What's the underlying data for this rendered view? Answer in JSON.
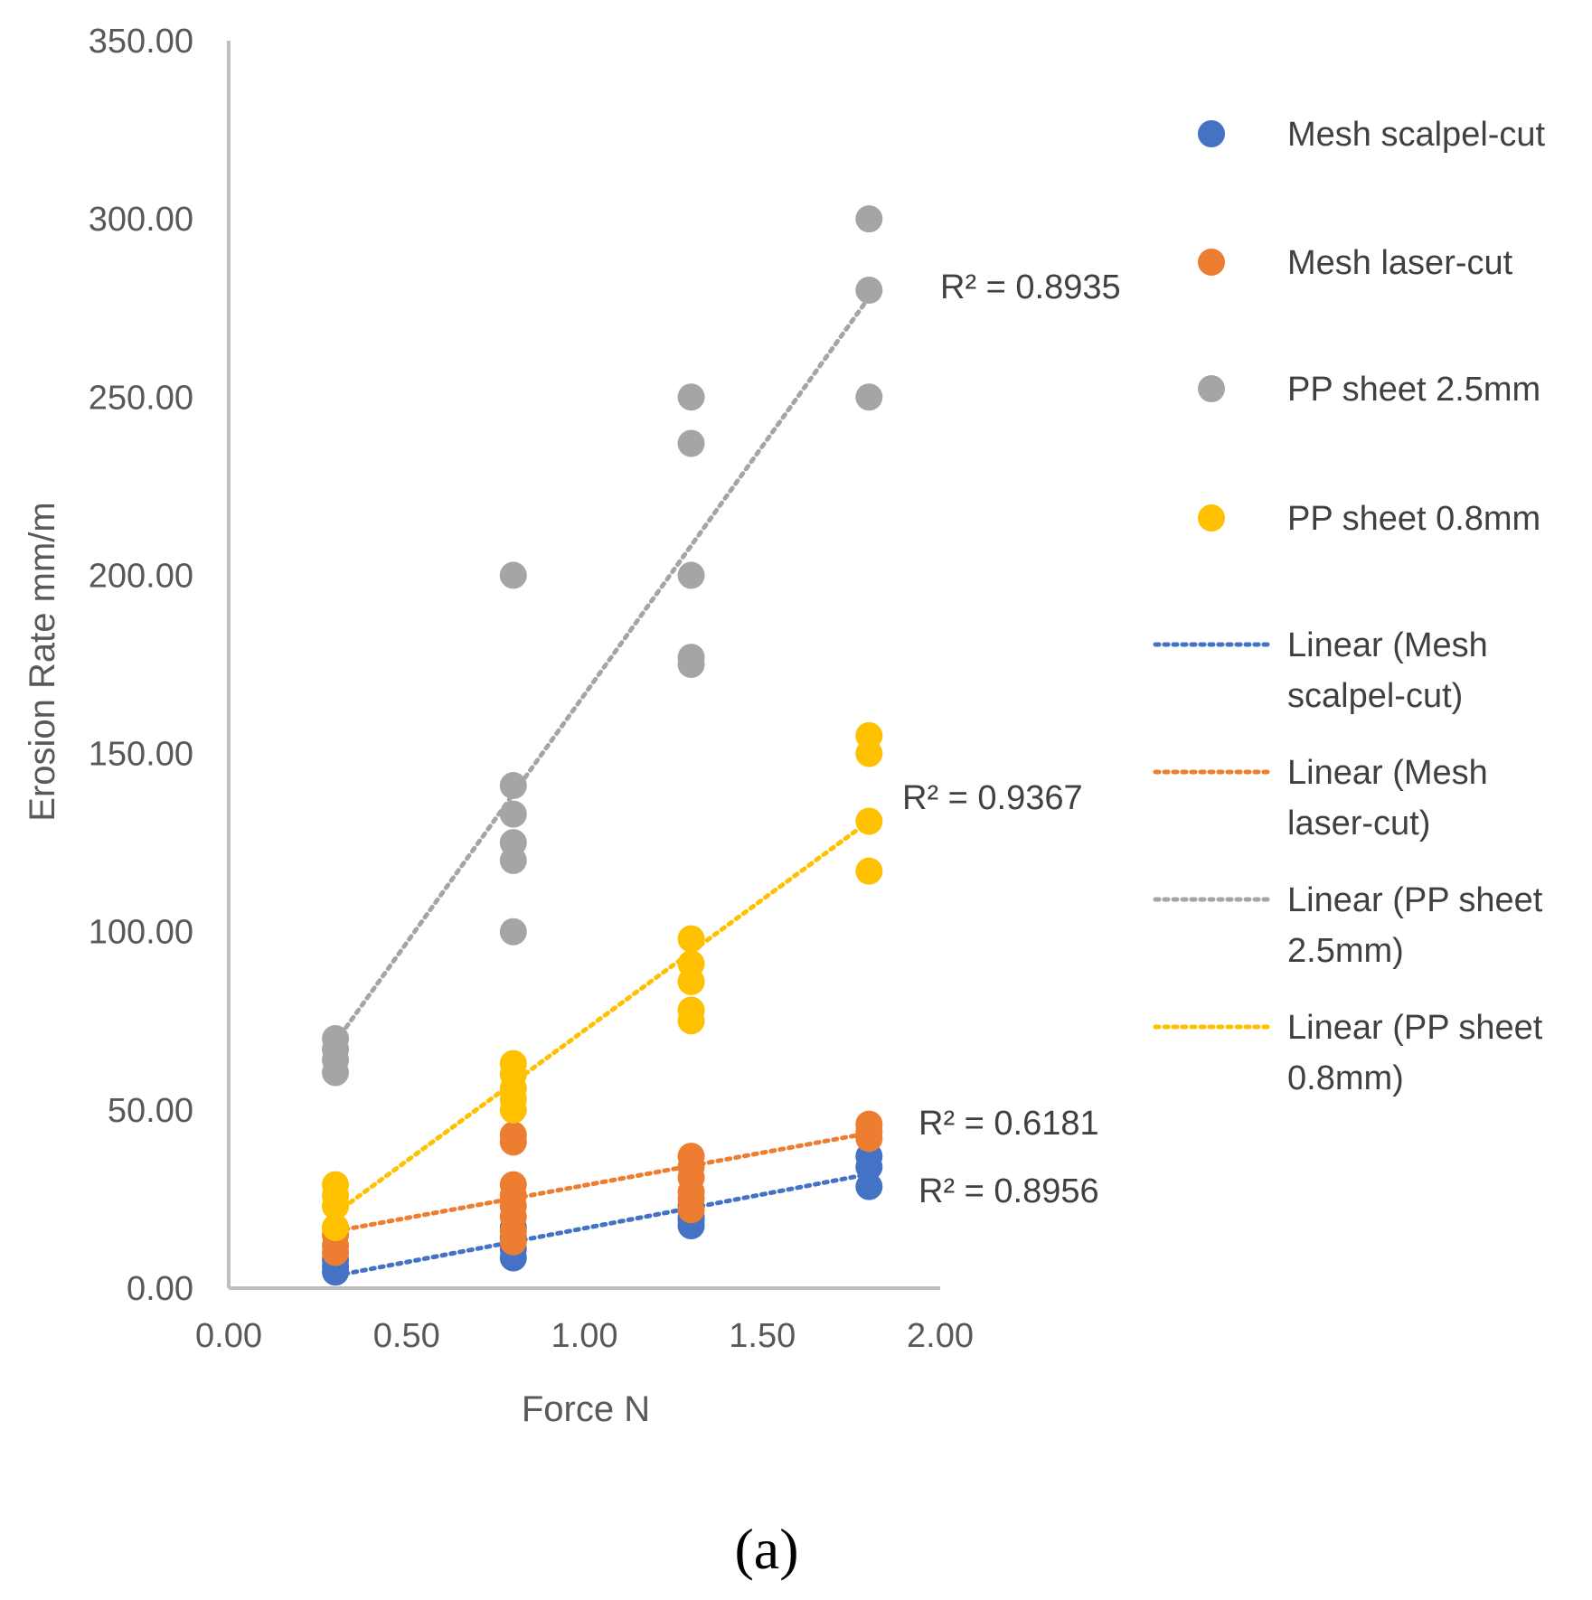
{
  "chart_data": {
    "type": "scatter",
    "title": "",
    "xlabel": "Force N",
    "ylabel": "Erosion Rate mm/m",
    "xlim": [
      0,
      2
    ],
    "ylim": [
      0,
      350
    ],
    "x_ticks": [
      "0.00",
      "0.50",
      "1.00",
      "1.50",
      "2.00"
    ],
    "y_ticks": [
      "0.00",
      "50.00",
      "100.00",
      "150.00",
      "200.00",
      "250.00",
      "300.00",
      "350.00"
    ],
    "grid": false,
    "legend_position": "right",
    "series": [
      {
        "name": "Mesh scalpel-cut",
        "color": "#4472C4",
        "points": [
          [
            0.3,
            4.5
          ],
          [
            0.3,
            6
          ],
          [
            0.3,
            8
          ],
          [
            0.8,
            8.5
          ],
          [
            0.8,
            11
          ],
          [
            0.8,
            14
          ],
          [
            0.8,
            17
          ],
          [
            1.3,
            17.5
          ],
          [
            1.3,
            19
          ],
          [
            1.3,
            20
          ],
          [
            1.3,
            23
          ],
          [
            1.8,
            28.5
          ],
          [
            1.8,
            34
          ],
          [
            1.8,
            37
          ]
        ],
        "trend": {
          "label": "Linear (Mesh scalpel-cut)",
          "label_lines": [
            "Linear (Mesh",
            "scalpel-cut)"
          ],
          "x": [
            0.3,
            1.8
          ],
          "y": [
            3.5,
            32
          ],
          "r2": "R² = 0.8956"
        }
      },
      {
        "name": "Mesh laser-cut",
        "color": "#ED7D31",
        "points": [
          [
            0.3,
            10
          ],
          [
            0.3,
            12
          ],
          [
            0.3,
            15
          ],
          [
            0.3,
            17
          ],
          [
            0.8,
            13
          ],
          [
            0.8,
            16
          ],
          [
            0.8,
            20
          ],
          [
            0.8,
            23
          ],
          [
            0.8,
            26
          ],
          [
            0.8,
            29
          ],
          [
            0.8,
            41
          ],
          [
            0.8,
            43
          ],
          [
            1.3,
            22
          ],
          [
            1.3,
            25
          ],
          [
            1.3,
            27
          ],
          [
            1.3,
            31
          ],
          [
            1.3,
            34
          ],
          [
            1.3,
            37
          ],
          [
            1.8,
            42
          ],
          [
            1.8,
            44
          ],
          [
            1.8,
            46
          ]
        ],
        "trend": {
          "label": "Linear (Mesh laser-cut)",
          "label_lines": [
            "Linear (Mesh",
            "laser-cut)"
          ],
          "x": [
            0.3,
            1.8
          ],
          "y": [
            16,
            43.5
          ],
          "r2": "R² = 0.6181"
        }
      },
      {
        "name": "PP sheet 2.5mm",
        "color": "#A5A5A5",
        "points": [
          [
            0.3,
            60.5
          ],
          [
            0.3,
            64
          ],
          [
            0.3,
            67
          ],
          [
            0.3,
            70
          ],
          [
            0.8,
            100
          ],
          [
            0.8,
            120
          ],
          [
            0.8,
            125
          ],
          [
            0.8,
            133
          ],
          [
            0.8,
            141
          ],
          [
            0.8,
            200
          ],
          [
            1.3,
            175
          ],
          [
            1.3,
            177
          ],
          [
            1.3,
            200
          ],
          [
            1.3,
            237
          ],
          [
            1.3,
            250
          ],
          [
            1.8,
            250
          ],
          [
            1.8,
            280
          ],
          [
            1.8,
            300
          ]
        ],
        "trend": {
          "label": "Linear (PP sheet 2.5mm)",
          "label_lines": [
            "Linear (PP sheet",
            "2.5mm)"
          ],
          "x": [
            0.3,
            1.8
          ],
          "y": [
            69,
            278
          ],
          "r2": "R² = 0.8935"
        }
      },
      {
        "name": "PP sheet 0.8mm",
        "color": "#FFC000",
        "points": [
          [
            0.3,
            17
          ],
          [
            0.3,
            23
          ],
          [
            0.3,
            26
          ],
          [
            0.3,
            29
          ],
          [
            0.8,
            50
          ],
          [
            0.8,
            53
          ],
          [
            0.8,
            56
          ],
          [
            0.8,
            60
          ],
          [
            0.8,
            63
          ],
          [
            1.3,
            75
          ],
          [
            1.3,
            78
          ],
          [
            1.3,
            86
          ],
          [
            1.3,
            91
          ],
          [
            1.3,
            98
          ],
          [
            1.8,
            117
          ],
          [
            1.8,
            131
          ],
          [
            1.8,
            150
          ],
          [
            1.8,
            155
          ]
        ],
        "trend": {
          "label": "Linear (PP sheet 0.8mm)",
          "label_lines": [
            "Linear (PP sheet",
            "0.8mm)"
          ],
          "x": [
            0.3,
            1.8
          ],
          "y": [
            21,
            131
          ],
          "r2": "R² = 0.9367"
        }
      }
    ]
  },
  "panel_label": "(a)"
}
